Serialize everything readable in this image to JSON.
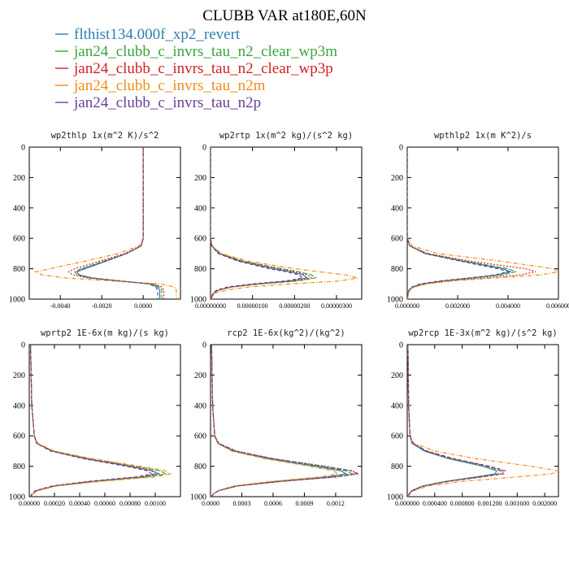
{
  "figure": {
    "title": "CLUBB VAR at180E,60N",
    "legend": [
      {
        "label": "flthist134.000f_xp2_revert",
        "color": "#2f7fb0"
      },
      {
        "label": "jan24_clubb_c_invrs_tau_n2_clear_wp3m",
        "color": "#3aa53a"
      },
      {
        "label": "jan24_clubb_c_invrs_tau_n2_clear_wp3p",
        "color": "#d42020"
      },
      {
        "label": "jan24_clubb_c_invrs_tau_n2m",
        "color": "#f28c16"
      },
      {
        "label": "jan24_clubb_c_invrs_tau_n2p",
        "color": "#6b3e99"
      }
    ]
  },
  "chart_data": [
    {
      "type": "line",
      "title": "wp2thlp  1x(m^2 K)/s^2",
      "xlim": [
        -0.0055,
        0.0018
      ],
      "ylim": [
        0,
        1000
      ],
      "y_inverted": true,
      "xticks": [
        -0.004,
        -0.002,
        0.0
      ],
      "xtick_labels": [
        "-0.0040",
        "-0.0020",
        "0.0000"
      ],
      "yticks": [
        0,
        200,
        400,
        600,
        800,
        1000
      ],
      "y": [
        0,
        600,
        650,
        700,
        750,
        800,
        820,
        840,
        860,
        880,
        900,
        920,
        940,
        960,
        980,
        1000
      ],
      "series": [
        {
          "name": "flthist134.000f_xp2_revert",
          "values": [
            0.0,
            0.0,
            -0.0001,
            -0.0008,
            -0.0018,
            -0.0028,
            -0.0032,
            -0.0031,
            -0.0025,
            -0.0012,
            0.0003,
            0.0007,
            0.0008,
            0.0008,
            0.0008,
            0.0008
          ]
        },
        {
          "name": "jan24_clubb_c_invrs_tau_n2_clear_wp3m",
          "values": [
            0.0,
            0.0,
            -0.0001,
            -0.0008,
            -0.0019,
            -0.003,
            -0.0033,
            -0.0032,
            -0.0026,
            -0.0012,
            0.0004,
            0.0008,
            0.0009,
            0.0009,
            0.0009,
            0.0009
          ]
        },
        {
          "name": "jan24_clubb_c_invrs_tau_n2_clear_wp3p",
          "values": [
            0.0,
            0.0,
            -0.0001,
            -0.0009,
            -0.0021,
            -0.0033,
            -0.0036,
            -0.0034,
            -0.0027,
            -0.0012,
            0.0005,
            0.0009,
            0.001,
            0.001,
            0.001,
            0.001
          ]
        },
        {
          "name": "jan24_clubb_c_invrs_tau_n2m",
          "values": [
            0.0,
            0.0,
            -0.0002,
            -0.0012,
            -0.0028,
            -0.0045,
            -0.0052,
            -0.0049,
            -0.0038,
            -0.0016,
            0.0008,
            0.0015,
            0.0016,
            0.0016,
            0.0016,
            0.0016
          ]
        },
        {
          "name": "jan24_clubb_c_invrs_tau_n2p",
          "values": [
            0.0,
            0.0,
            -0.0001,
            -0.0008,
            -0.0018,
            -0.0029,
            -0.0032,
            -0.0031,
            -0.0025,
            -0.0011,
            0.0003,
            0.0006,
            0.0007,
            0.0007,
            0.0007,
            0.0007
          ]
        }
      ]
    },
    {
      "type": "line",
      "title": "wp2rtp  1x(m^2 kg)/(s^2 kg)",
      "xlim": [
        0,
        3.6e-06
      ],
      "ylim": [
        0,
        1000
      ],
      "y_inverted": true,
      "xticks": [
        0,
        1e-06,
        2e-06,
        3e-06
      ],
      "xtick_labels": [
        "0.00000000",
        "0.00000100",
        "0.00000200",
        "0.00000300"
      ],
      "yticks": [
        0,
        200,
        400,
        600,
        800,
        1000
      ],
      "y": [
        0,
        600,
        650,
        700,
        750,
        800,
        820,
        840,
        860,
        880,
        900,
        920,
        940,
        960,
        980,
        1000
      ],
      "series": [
        {
          "name": "flthist134.000f_xp2_revert",
          "values": [
            0,
            0,
            3e-08,
            2e-07,
            7e-07,
            1.5e-06,
            1.9e-06,
            2.2e-06,
            2.3e-06,
            1.9e-06,
            1.1e-06,
            5e-07,
            2e-07,
            8e-08,
            4e-08,
            2e-08
          ]
        },
        {
          "name": "jan24_clubb_c_invrs_tau_n2_clear_wp3m",
          "values": [
            0,
            0,
            4e-08,
            2.2e-07,
            7.8e-07,
            1.7e-06,
            2.1e-06,
            2.4e-06,
            2.5e-06,
            2.1e-06,
            1.2e-06,
            5e-07,
            2e-07,
            8e-08,
            4e-08,
            2e-08
          ]
        },
        {
          "name": "jan24_clubb_c_invrs_tau_n2_clear_wp3p",
          "values": [
            0,
            0,
            3e-08,
            2e-07,
            7.2e-07,
            1.6e-06,
            2e-06,
            2.3e-06,
            2.4e-06,
            2e-06,
            1.1e-06,
            5e-07,
            2e-07,
            8e-08,
            4e-08,
            2e-08
          ]
        },
        {
          "name": "jan24_clubb_c_invrs_tau_n2m",
          "values": [
            0,
            0,
            4e-08,
            2.6e-07,
            9e-07,
            2e-06,
            2.6e-06,
            3.2e-06,
            3.5e-06,
            3.1e-06,
            1.9e-06,
            9e-07,
            4e-07,
            1e-07,
            5e-08,
            2e-08
          ]
        },
        {
          "name": "jan24_clubb_c_invrs_tau_n2p",
          "values": [
            0,
            0,
            3e-08,
            1.8e-07,
            6.5e-07,
            1.4e-06,
            1.8e-06,
            2.1e-06,
            2.2e-06,
            1.8e-06,
            1e-06,
            4e-07,
            1.5e-07,
            6e-08,
            3e-08,
            1e-08
          ]
        }
      ]
    },
    {
      "type": "line",
      "title": "wpthlp2  1x(m K^2)/s",
      "xlim": [
        0,
        0.006
      ],
      "ylim": [
        0,
        1000
      ],
      "y_inverted": true,
      "xticks": [
        0,
        0.002,
        0.004,
        0.006
      ],
      "xtick_labels": [
        "0.000000",
        "0.002000",
        "0.004000",
        "0.006000"
      ],
      "yticks": [
        0,
        200,
        400,
        600,
        800,
        1000
      ],
      "y": [
        0,
        600,
        650,
        700,
        750,
        800,
        820,
        840,
        860,
        880,
        900,
        920,
        940,
        960,
        980,
        1000
      ],
      "series": [
        {
          "name": "flthist134.000f_xp2_revert",
          "values": [
            0,
            0,
            0.0001,
            0.0007,
            0.0022,
            0.0038,
            0.0041,
            0.0036,
            0.0026,
            0.0014,
            0.0006,
            0.0002,
            8e-05,
            4e-05,
            2e-05,
            1e-05
          ]
        },
        {
          "name": "jan24_clubb_c_invrs_tau_n2_clear_wp3m",
          "values": [
            0,
            0,
            0.0001,
            0.0008,
            0.0023,
            0.004,
            0.0043,
            0.0038,
            0.0027,
            0.0015,
            0.0006,
            0.0002,
            8e-05,
            4e-05,
            2e-05,
            1e-05
          ]
        },
        {
          "name": "jan24_clubb_c_invrs_tau_n2_clear_wp3p",
          "values": [
            0,
            0,
            0.0001,
            0.0008,
            0.0025,
            0.0047,
            0.0051,
            0.0045,
            0.0031,
            0.0016,
            0.0007,
            0.00025,
            0.0001,
            4e-05,
            2e-05,
            1e-05
          ]
        },
        {
          "name": "jan24_clubb_c_invrs_tau_n2m",
          "values": [
            0,
            0,
            0.0002,
            0.0012,
            0.0037,
            0.0058,
            0.006,
            0.0053,
            0.0036,
            0.0018,
            0.0008,
            0.0003,
            0.0001,
            5e-05,
            2e-05,
            1e-05
          ]
        },
        {
          "name": "jan24_clubb_c_invrs_tau_n2p",
          "values": [
            0,
            0,
            0.0001,
            0.0007,
            0.0021,
            0.0036,
            0.004,
            0.0035,
            0.0025,
            0.0013,
            0.0005,
            0.0002,
            7e-05,
            3e-05,
            2e-05,
            1e-05
          ]
        }
      ]
    },
    {
      "type": "line",
      "title": "wprtp2  1E-6x(m kg)/(s kg)",
      "xlim": [
        0,
        0.0012
      ],
      "ylim": [
        0,
        1000
      ],
      "y_inverted": true,
      "xticks": [
        0,
        0.0002,
        0.0004,
        0.0006,
        0.0008,
        0.001
      ],
      "xtick_labels": [
        "0.00000",
        "0.00020",
        "0.00040",
        "0.00060",
        "0.00080",
        "0.00100"
      ],
      "yticks": [
        0,
        200,
        400,
        600,
        800,
        1000
      ],
      "y": [
        0,
        400,
        500,
        600,
        650,
        700,
        750,
        800,
        830,
        850,
        870,
        900,
        930,
        960,
        980,
        1000
      ],
      "series": [
        {
          "name": "flthist134.000f_xp2_revert",
          "values": [
            1e-05,
            2e-05,
            3e-05,
            4e-05,
            6e-05,
            0.00018,
            0.00045,
            0.0008,
            0.00098,
            0.00103,
            0.0009,
            0.0005,
            0.0002,
            6e-05,
            3e-05,
            1e-05
          ]
        },
        {
          "name": "jan24_clubb_c_invrs_tau_n2_clear_wp3m",
          "values": [
            1e-05,
            2e-05,
            3e-05,
            4e-05,
            6e-05,
            0.00019,
            0.00047,
            0.00084,
            0.00104,
            0.00108,
            0.00095,
            0.00052,
            0.0002,
            6e-05,
            3e-05,
            1e-05
          ]
        },
        {
          "name": "jan24_clubb_c_invrs_tau_n2_clear_wp3p",
          "values": [
            1e-05,
            2e-05,
            3e-05,
            4e-05,
            6e-05,
            0.00018,
            0.00045,
            0.0008,
            0.00097,
            0.001,
            0.00088,
            0.00048,
            0.00019,
            6e-05,
            3e-05,
            1e-05
          ]
        },
        {
          "name": "jan24_clubb_c_invrs_tau_n2m",
          "values": [
            1e-05,
            2e-05,
            3e-05,
            4e-05,
            7e-05,
            0.0002,
            0.0005,
            0.00088,
            0.00108,
            0.00112,
            0.001,
            0.00056,
            0.00022,
            7e-05,
            3e-05,
            1e-05
          ]
        },
        {
          "name": "jan24_clubb_c_invrs_tau_n2p",
          "values": [
            1e-05,
            2e-05,
            3e-05,
            4e-05,
            6e-05,
            0.00017,
            0.00043,
            0.00077,
            0.00094,
            0.00097,
            0.00085,
            0.00046,
            0.00018,
            5e-05,
            2e-05,
            1e-05
          ]
        }
      ]
    },
    {
      "type": "line",
      "title": "rcp2  1E-6x(kg^2)/(kg^2)",
      "xlim": [
        0,
        0.00145
      ],
      "ylim": [
        0,
        1000
      ],
      "y_inverted": true,
      "xticks": [
        0,
        0.0003,
        0.0006,
        0.0009,
        0.0012
      ],
      "xtick_labels": [
        "0.0000",
        "0.0003",
        "0.0006",
        "0.0009",
        "0.0012"
      ],
      "yticks": [
        0,
        200,
        400,
        600,
        800,
        1000
      ],
      "y": [
        0,
        400,
        500,
        600,
        650,
        700,
        750,
        800,
        830,
        850,
        870,
        900,
        930,
        960,
        980,
        1000
      ],
      "series": [
        {
          "name": "flthist134.000f_xp2_revert",
          "values": [
            1e-05,
            2e-05,
            3e-05,
            4e-05,
            7e-05,
            0.00022,
            0.00055,
            0.001,
            0.00125,
            0.0013,
            0.00112,
            0.00062,
            0.00024,
            8e-05,
            3e-05,
            1e-05
          ]
        },
        {
          "name": "jan24_clubb_c_invrs_tau_n2_clear_wp3m",
          "values": [
            1e-05,
            2e-05,
            3e-05,
            4e-05,
            7e-05,
            0.00023,
            0.00058,
            0.00104,
            0.0013,
            0.00136,
            0.00117,
            0.00065,
            0.00025,
            8e-05,
            3e-05,
            1e-05
          ]
        },
        {
          "name": "jan24_clubb_c_invrs_tau_n2_clear_wp3p",
          "values": [
            1e-05,
            2e-05,
            3e-05,
            4e-05,
            8e-05,
            0.00025,
            0.0006,
            0.0011,
            0.00136,
            0.00142,
            0.00122,
            0.00068,
            0.00026,
            8e-05,
            3e-05,
            1e-05
          ]
        },
        {
          "name": "jan24_clubb_c_invrs_tau_n2m",
          "values": [
            1e-05,
            2e-05,
            3e-05,
            4e-05,
            7e-05,
            0.0002,
            0.00052,
            0.00095,
            0.00118,
            0.00122,
            0.00105,
            0.00058,
            0.00022,
            7e-05,
            3e-05,
            1e-05
          ]
        },
        {
          "name": "jan24_clubb_c_invrs_tau_n2p",
          "values": [
            1e-05,
            2e-05,
            3e-05,
            4e-05,
            8e-05,
            0.00024,
            0.0006,
            0.00108,
            0.00135,
            0.0014,
            0.0012,
            0.00066,
            0.00025,
            8e-05,
            3e-05,
            1e-05
          ]
        }
      ]
    },
    {
      "type": "line",
      "title": "wp2rcp  1E-3x(m^2 kg)/(s^2 kg)",
      "xlim": [
        0,
        0.0022
      ],
      "ylim": [
        0,
        1000
      ],
      "y_inverted": true,
      "xticks": [
        0,
        0.0004,
        0.0008,
        0.0012,
        0.0016,
        0.002
      ],
      "xtick_labels": [
        "0.000000",
        "0.000400",
        "0.000800",
        "0.001200",
        "0.001600",
        "0.002000"
      ],
      "yticks": [
        0,
        200,
        400,
        600,
        800,
        1000
      ],
      "y": [
        0,
        400,
        500,
        600,
        650,
        700,
        750,
        800,
        830,
        850,
        870,
        900,
        930,
        960,
        980,
        1000
      ],
      "series": [
        {
          "name": "flthist134.000f_xp2_revert",
          "values": [
            1e-05,
            2e-05,
            3e-05,
            4e-05,
            7e-05,
            0.00025,
            0.0006,
            0.0011,
            0.0013,
            0.00128,
            0.001,
            0.00055,
            0.00022,
            7e-05,
            3e-05,
            1e-05
          ]
        },
        {
          "name": "jan24_clubb_c_invrs_tau_n2_clear_wp3m",
          "values": [
            1e-05,
            2e-05,
            3e-05,
            4e-05,
            8e-05,
            0.00027,
            0.00063,
            0.00115,
            0.00136,
            0.00133,
            0.00104,
            0.00057,
            0.00023,
            7e-05,
            3e-05,
            1e-05
          ]
        },
        {
          "name": "jan24_clubb_c_invrs_tau_n2_clear_wp3p",
          "values": [
            1e-05,
            2e-05,
            3e-05,
            4e-05,
            8e-05,
            0.00028,
            0.00066,
            0.00118,
            0.0014,
            0.00137,
            0.00107,
            0.00058,
            0.00023,
            7e-05,
            3e-05,
            1e-05
          ]
        },
        {
          "name": "jan24_clubb_c_invrs_tau_n2m",
          "values": [
            1e-05,
            2e-05,
            3e-05,
            4e-05,
            0.0001,
            0.0004,
            0.001,
            0.0018,
            0.0022,
            0.0021,
            0.0016,
            0.0008,
            0.0003,
            0.0001,
            4e-05,
            1e-05
          ]
        },
        {
          "name": "jan24_clubb_c_invrs_tau_n2p",
          "values": [
            1e-05,
            2e-05,
            3e-05,
            4e-05,
            8e-05,
            0.00029,
            0.00068,
            0.0012,
            0.00143,
            0.0014,
            0.0011,
            0.0006,
            0.00024,
            8e-05,
            3e-05,
            1e-05
          ]
        }
      ]
    }
  ]
}
